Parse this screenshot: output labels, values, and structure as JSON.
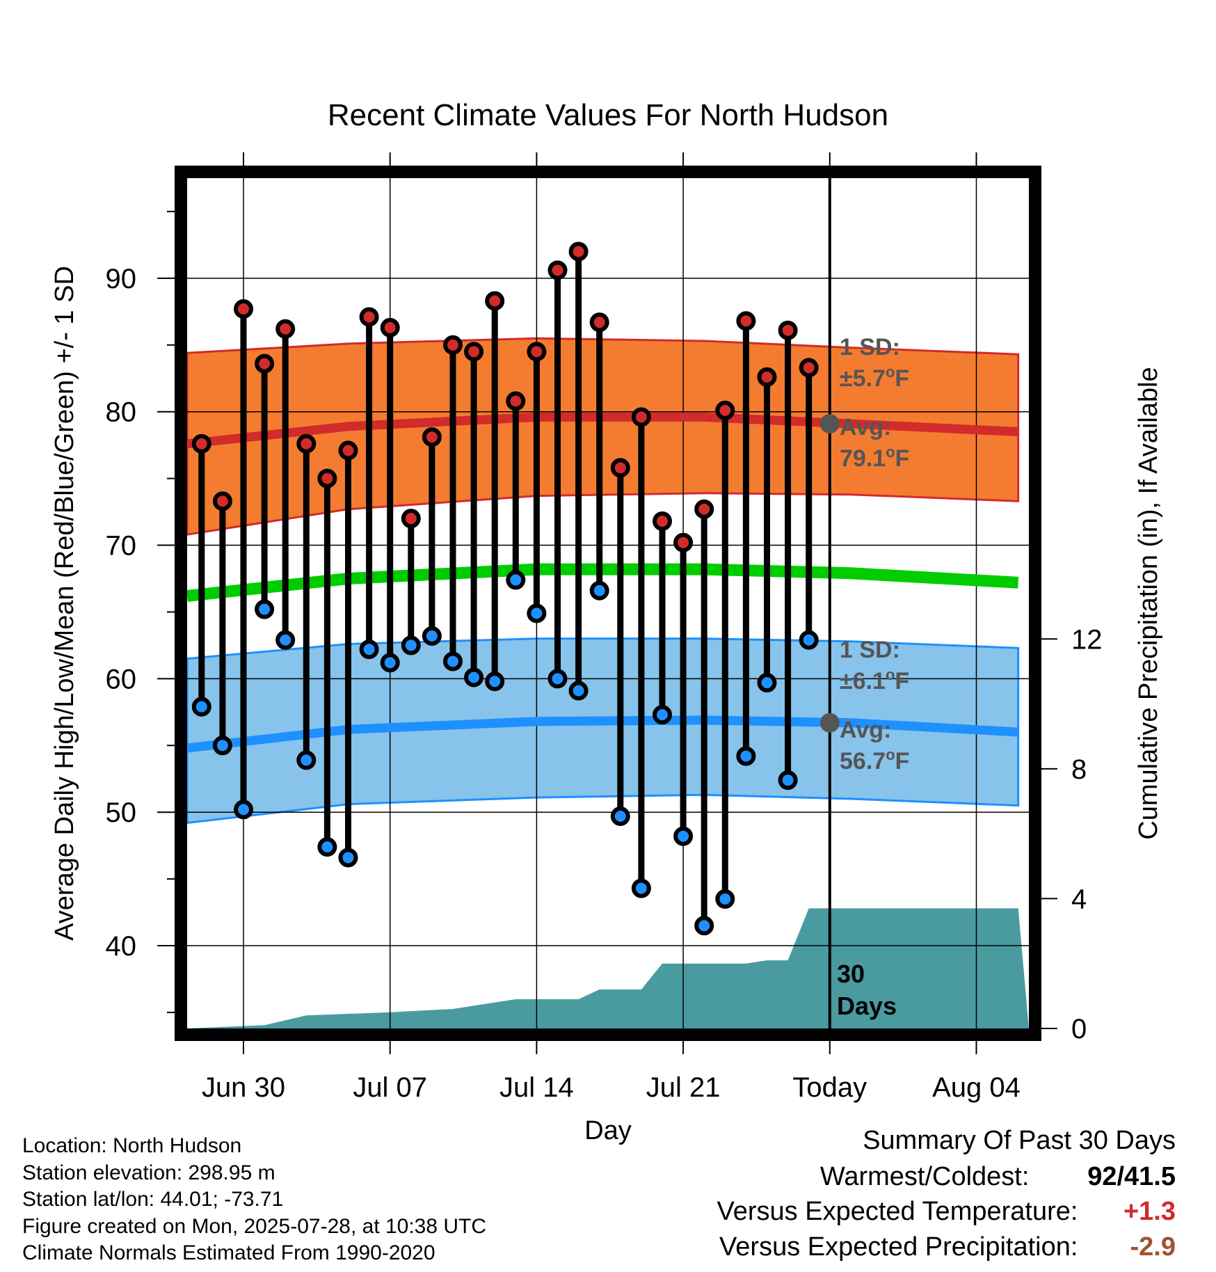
{
  "chart_data": {
    "type": "line",
    "title": "Recent Climate Values For North Hudson",
    "xlabel": "Day",
    "ylabel": "Average Daily High/Low/Mean (Red/Blue/Green) +/- 1 SD",
    "y2label": "Cumulative Precipitation (in), If Available",
    "x_ticks": [
      "Jun 30",
      "Jul 07",
      "Jul 14",
      "Jul 21",
      "Today",
      "Aug 04"
    ],
    "y_ticks": [
      40,
      50,
      60,
      70,
      80,
      90
    ],
    "y2_ticks": [
      0,
      4,
      8,
      12
    ],
    "ylim": [
      33.8,
      97.5
    ],
    "y2lim": [
      0,
      26.2
    ],
    "grid": true,
    "series": [
      {
        "name": "High",
        "color": "#d12b2b",
        "dates": [
          "2025-06-28",
          "2025-06-29",
          "2025-06-30",
          "2025-07-01",
          "2025-07-02",
          "2025-07-03",
          "2025-07-04",
          "2025-07-05",
          "2025-07-06",
          "2025-07-07",
          "2025-07-08",
          "2025-07-09",
          "2025-07-10",
          "2025-07-11",
          "2025-07-12",
          "2025-07-13",
          "2025-07-14",
          "2025-07-15",
          "2025-07-16",
          "2025-07-17",
          "2025-07-18",
          "2025-07-19",
          "2025-07-20",
          "2025-07-21",
          "2025-07-22",
          "2025-07-23",
          "2025-07-24",
          "2025-07-25",
          "2025-07-26",
          "2025-07-27"
        ],
        "values": [
          77.6,
          73.3,
          87.7,
          83.6,
          86.2,
          77.6,
          75.0,
          77.1,
          87.1,
          86.3,
          72.0,
          78.1,
          85.0,
          84.5,
          88.3,
          80.8,
          84.5,
          90.6,
          92.0,
          86.7,
          75.8,
          79.6,
          71.8,
          70.2,
          72.7,
          80.1,
          86.8,
          82.6,
          86.1,
          83.3
        ]
      },
      {
        "name": "Low",
        "color": "#1e90ff",
        "dates": [
          "2025-06-28",
          "2025-06-29",
          "2025-06-30",
          "2025-07-01",
          "2025-07-02",
          "2025-07-03",
          "2025-07-04",
          "2025-07-05",
          "2025-07-06",
          "2025-07-07",
          "2025-07-08",
          "2025-07-09",
          "2025-07-10",
          "2025-07-11",
          "2025-07-12",
          "2025-07-13",
          "2025-07-14",
          "2025-07-15",
          "2025-07-16",
          "2025-07-17",
          "2025-07-18",
          "2025-07-19",
          "2025-07-20",
          "2025-07-21",
          "2025-07-22",
          "2025-07-23",
          "2025-07-24",
          "2025-07-25",
          "2025-07-26",
          "2025-07-27"
        ],
        "values": [
          57.9,
          55.0,
          50.2,
          65.2,
          62.9,
          53.9,
          47.4,
          46.6,
          62.2,
          61.2,
          62.5,
          63.2,
          61.3,
          60.1,
          59.8,
          67.4,
          64.9,
          60.0,
          59.1,
          66.6,
          49.7,
          44.3,
          57.3,
          48.2,
          41.5,
          43.5,
          54.2,
          59.7,
          52.4,
          62.9
        ]
      },
      {
        "name": "Normal High",
        "color": "#d12b2b",
        "dates": [
          "2025-06-27",
          "2025-07-05",
          "2025-07-14",
          "2025-07-22",
          "2025-07-29",
          "2025-08-06"
        ],
        "values": [
          77.6,
          78.9,
          79.6,
          79.6,
          79.1,
          78.5
        ],
        "sd_upper": [
          84.4,
          85.1,
          85.5,
          85.3,
          84.8,
          84.3
        ],
        "sd_lower": [
          70.8,
          72.7,
          73.7,
          73.9,
          73.8,
          73.3
        ]
      },
      {
        "name": "Normal Low",
        "color": "#1e90ff",
        "dates": [
          "2025-06-27",
          "2025-07-05",
          "2025-07-14",
          "2025-07-22",
          "2025-07-29",
          "2025-08-06"
        ],
        "values": [
          54.8,
          56.2,
          56.8,
          56.9,
          56.7,
          56.0
        ],
        "sd_upper": [
          61.5,
          62.6,
          63.0,
          63.0,
          62.8,
          62.3
        ],
        "sd_lower": [
          49.2,
          50.6,
          51.1,
          51.3,
          51.0,
          50.5
        ]
      },
      {
        "name": "Normal Mean",
        "color": "#00cc00",
        "dates": [
          "2025-06-27",
          "2025-07-05",
          "2025-07-14",
          "2025-07-22",
          "2025-07-29",
          "2025-08-06"
        ],
        "values": [
          66.2,
          67.5,
          68.2,
          68.2,
          67.9,
          67.2
        ]
      },
      {
        "name": "Cumulative Precipitation",
        "color": "#4a9ba0",
        "dates": [
          "2025-06-27",
          "2025-07-01",
          "2025-07-03",
          "2025-07-07",
          "2025-07-10",
          "2025-07-13",
          "2025-07-16",
          "2025-07-17",
          "2025-07-19",
          "2025-07-20",
          "2025-07-24",
          "2025-07-25",
          "2025-07-26",
          "2025-07-27",
          "2025-08-06"
        ],
        "values": [
          0.0,
          0.1,
          0.4,
          0.5,
          0.6,
          0.9,
          0.9,
          1.2,
          1.2,
          2.0,
          2.0,
          2.1,
          2.1,
          3.7,
          3.7
        ]
      }
    ],
    "today_marker": {
      "label": "Today",
      "high_sd_label": "1 SD:",
      "high_sd_value": "±5.7",
      "high_avg_label": "Avg:",
      "high_avg_value": "79.1",
      "low_sd_label": "1 SD:",
      "low_sd_value": "±6.1",
      "low_avg_label": "Avg:",
      "low_avg_value": "56.7",
      "unit_degree": "o",
      "unit_f": "F",
      "days_label_1": "30",
      "days_label_2": "Days"
    },
    "colors": {
      "high_band": "#f47c30",
      "low_band": "#87c3ea",
      "precip_fill": "#4a9ba0",
      "marker_gray": "#555555"
    }
  },
  "info": {
    "location": "Location: North Hudson",
    "elevation": "Station elevation: 298.95 m",
    "latlon": "Station lat/lon: 44.01; -73.71",
    "created": "Figure created on Mon, 2025-07-28, at 10:38 UTC",
    "normals": "Climate Normals Estimated From 1990-2020"
  },
  "summary": {
    "title": "Summary Of Past 30 Days",
    "warmest_coldest_label": "Warmest/Coldest:",
    "warmest_coldest_value": "92/41.5",
    "temp_label": "Versus Expected Temperature:",
    "temp_value": "+1.3",
    "temp_color": "#d12b2b",
    "precip_label": "Versus Expected Precipitation:",
    "precip_value": "-2.9",
    "precip_color": "#a0522d"
  }
}
